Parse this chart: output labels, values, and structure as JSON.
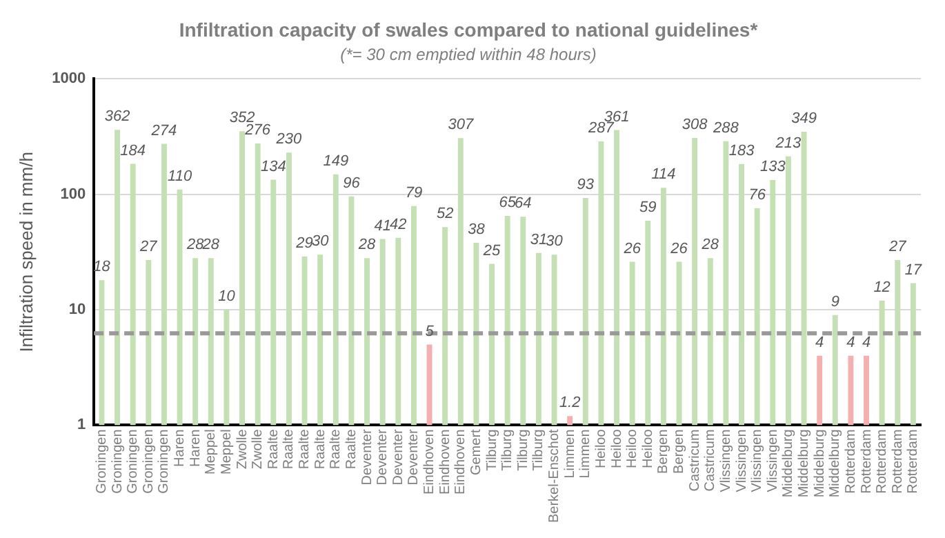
{
  "chart_data": {
    "type": "bar",
    "title": "Infiltration capacity of swales compared to national guidelines*",
    "subtitle": "(*= 30 cm emptied within 48 hours)",
    "ylabel": "Infiltration speed in mm/h",
    "categories": [
      "Groningen",
      "Groningen",
      "Groningen",
      "Groningen",
      "Groningen",
      "Haren",
      "Haren",
      "Meppel",
      "Meppel",
      "Zwolle",
      "Zwolle",
      "Raalte",
      "Raalte",
      "Raalte",
      "Raalte",
      "Raalte",
      "Raalte",
      "Deventer",
      "Deventer",
      "Deventer",
      "Deventer",
      "Eindhoven",
      "Eindhoven",
      "Eindhoven",
      "Gemert",
      "Tilburg",
      "Tilburg",
      "Tilburg",
      "Tilburg",
      "Berkel-Enschot",
      "Limmen",
      "Limmen",
      "Heiloo",
      "Heiloo",
      "Heiloo",
      "Heiloo",
      "Bergen",
      "Bergen",
      "Castricum",
      "Castricum",
      "Vlissingen",
      "Vlissingen",
      "Vlissingen",
      "Vlissingen",
      "Middelburg",
      "Middelburg",
      "Middelburg",
      "Middelburg",
      "Rotterdam",
      "Rotterdam",
      "Rotterdam",
      "Rotterdam",
      "Rotterdam"
    ],
    "values": [
      18,
      362,
      184,
      27,
      274,
      110,
      28,
      28,
      10,
      352,
      276,
      134,
      230,
      29,
      30,
      149,
      96,
      28,
      41,
      42,
      79,
      5,
      52,
      307,
      38,
      25,
      65,
      64,
      31,
      30,
      1.2,
      93,
      287,
      361,
      26,
      59,
      114,
      26,
      308,
      28,
      288,
      183,
      76,
      133,
      213,
      349,
      4,
      9,
      4,
      4,
      12,
      27,
      17
    ],
    "colors": [
      "#c5e0b4",
      "#c5e0b4",
      "#c5e0b4",
      "#c5e0b4",
      "#c5e0b4",
      "#c5e0b4",
      "#c5e0b4",
      "#c5e0b4",
      "#c5e0b4",
      "#c5e0b4",
      "#c5e0b4",
      "#c5e0b4",
      "#c5e0b4",
      "#c5e0b4",
      "#c5e0b4",
      "#c5e0b4",
      "#c5e0b4",
      "#c5e0b4",
      "#c5e0b4",
      "#c5e0b4",
      "#c5e0b4",
      "#f4b0b0",
      "#c5e0b4",
      "#c5e0b4",
      "#c5e0b4",
      "#c5e0b4",
      "#c5e0b4",
      "#c5e0b4",
      "#c5e0b4",
      "#c5e0b4",
      "#f4b0b0",
      "#c5e0b4",
      "#c5e0b4",
      "#c5e0b4",
      "#c5e0b4",
      "#c5e0b4",
      "#c5e0b4",
      "#c5e0b4",
      "#c5e0b4",
      "#c5e0b4",
      "#c5e0b4",
      "#c5e0b4",
      "#c5e0b4",
      "#c5e0b4",
      "#c5e0b4",
      "#c5e0b4",
      "#f4b0b0",
      "#c5e0b4",
      "#f4b0b0",
      "#f4b0b0",
      "#c5e0b4",
      "#c5e0b4",
      "#c5e0b4"
    ],
    "log": "y",
    "ylim": [
      1,
      1000
    ],
    "yticks": [
      1,
      10,
      100,
      1000
    ],
    "grid": "y",
    "data_labels": true,
    "ref_lines": [
      {
        "axis": "y",
        "value": 6.25,
        "color": "#999999",
        "line_style": "dashed"
      }
    ]
  }
}
